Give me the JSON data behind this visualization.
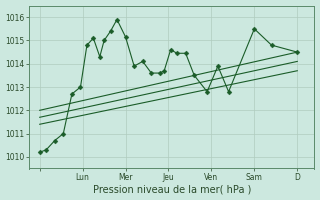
{
  "title": "",
  "xlabel": "Pression niveau de la mer( hPa )",
  "ylabel": "",
  "bg_color": "#cce8df",
  "plot_bg_color": "#cce8df",
  "grid_color": "#b0ccbf",
  "line_color": "#1a5c28",
  "ylim": [
    1009.5,
    1016.5
  ],
  "yticks": [
    1010,
    1011,
    1012,
    1013,
    1014,
    1015,
    1016
  ],
  "day_labels": [
    "",
    "Lun",
    "Mer",
    "Jeu",
    "Ven",
    "Sam",
    "D"
  ],
  "day_positions": [
    0,
    20,
    40,
    60,
    80,
    100,
    120
  ],
  "xlim": [
    -5,
    128
  ],
  "series1_x": [
    0,
    3,
    7,
    11,
    15,
    19,
    22,
    25,
    28,
    30,
    33,
    36,
    40,
    44,
    48,
    52,
    56,
    58,
    61,
    64,
    68,
    72,
    78,
    83,
    88,
    100,
    108,
    120
  ],
  "series1_y": [
    1010.2,
    1010.3,
    1010.7,
    1011.0,
    1012.7,
    1013.0,
    1014.8,
    1015.1,
    1014.3,
    1015.0,
    1015.4,
    1015.9,
    1015.15,
    1013.9,
    1014.1,
    1013.6,
    1013.6,
    1013.7,
    1014.6,
    1014.45,
    1014.45,
    1013.5,
    1012.8,
    1013.9,
    1012.8,
    1015.5,
    1014.8,
    1014.5
  ],
  "trend1_x": [
    0,
    120
  ],
  "trend1_y": [
    1012.0,
    1014.5
  ],
  "trend2_x": [
    0,
    120
  ],
  "trend2_y": [
    1011.7,
    1014.1
  ],
  "trend3_x": [
    0,
    120
  ],
  "trend3_y": [
    1011.4,
    1013.7
  ]
}
